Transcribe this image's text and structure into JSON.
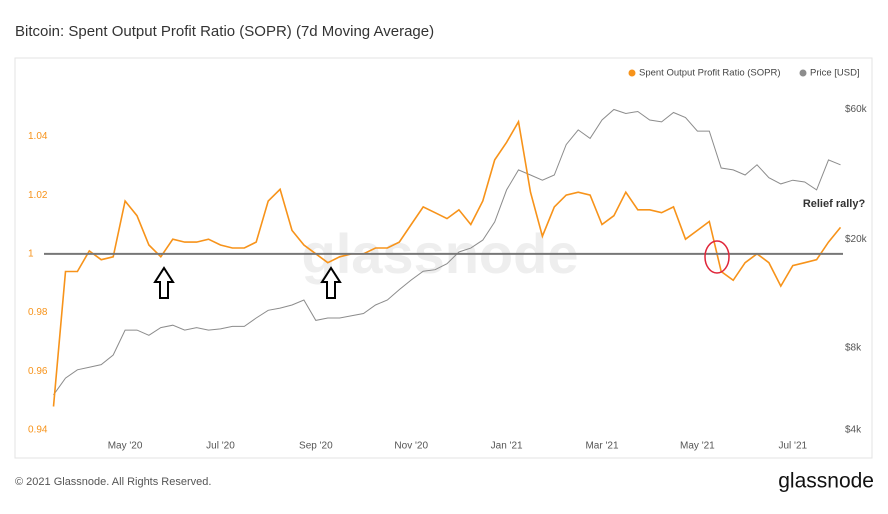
{
  "chart_data": {
    "type": "line",
    "title": "Bitcoin: Spent Output Profit Ratio (SOPR) (7d Moving Average)",
    "x": [
      2.5,
      2.75,
      3,
      3.25,
      3.5,
      3.75,
      4,
      4.25,
      4.5,
      4.75,
      5,
      5.25,
      5.5,
      5.75,
      6,
      6.25,
      6.5,
      6.75,
      7,
      7.25,
      7.5,
      7.75,
      8,
      8.25,
      8.5,
      8.75,
      9,
      9.25,
      9.5,
      9.75,
      10,
      10.25,
      10.5,
      10.75,
      11,
      11.25,
      11.5,
      11.75,
      12,
      12.25,
      12.5,
      12.75,
      13,
      13.25,
      13.5,
      13.75,
      14,
      14.25,
      14.5,
      14.75,
      15,
      15.25,
      15.5,
      15.75,
      16,
      16.25,
      16.5,
      16.75,
      17,
      17.25,
      17.5,
      17.75,
      18,
      18.25,
      18.5,
      18.75,
      19
    ],
    "xlim": [
      2.3,
      19.2
    ],
    "xticks": [
      {
        "value": 4,
        "label": "May '20"
      },
      {
        "value": 6,
        "label": "Jul '20"
      },
      {
        "value": 8,
        "label": "Sep '20"
      },
      {
        "value": 10,
        "label": "Nov '20"
      },
      {
        "value": 12,
        "label": "Jan '21"
      },
      {
        "value": 14,
        "label": "Mar '21"
      },
      {
        "value": 16,
        "label": "May '21"
      },
      {
        "value": 18,
        "label": "Jul '21"
      }
    ],
    "ylim": [
      0.94,
      1.0524
    ],
    "yticks": [
      0.94,
      0.96,
      0.98,
      1,
      1.02,
      1.04
    ],
    "y2lim": [
      4000,
      65000
    ],
    "y2scale": "log",
    "y2ticks": [
      {
        "value": 4000,
        "label": "$4k"
      },
      {
        "value": 8000,
        "label": "$8k"
      },
      {
        "value": 20000,
        "label": "$20k"
      },
      {
        "value": 60000,
        "label": "$60k"
      }
    ],
    "reference_line": 1,
    "series": [
      {
        "name": "Spent Output Profit Ratio (SOPR)",
        "color": "#f7931a",
        "values": [
          0.948,
          0.994,
          0.994,
          1.001,
          0.998,
          0.999,
          1.018,
          1.013,
          1.003,
          0.999,
          1.005,
          1.004,
          1.004,
          1.005,
          1.003,
          1.002,
          1.002,
          1.004,
          1.018,
          1.022,
          1.008,
          1.003,
          1.0,
          0.997,
          0.999,
          1.0,
          1.0,
          1.002,
          1.002,
          1.004,
          1.01,
          1.016,
          1.014,
          1.012,
          1.015,
          1.01,
          1.018,
          1.032,
          1.038,
          1.045,
          1.021,
          1.006,
          1.016,
          1.02,
          1.021,
          1.02,
          1.01,
          1.013,
          1.021,
          1.015,
          1.015,
          1.014,
          1.016,
          1.005,
          1.008,
          1.011,
          0.994,
          0.991,
          0.997,
          1.0,
          0.997,
          0.989,
          0.996,
          0.997,
          0.998,
          1.004,
          1.009
        ]
      },
      {
        "name": "Price [USD]",
        "color": "#8c8c8c",
        "axis": "y2",
        "values": [
          5380,
          6200,
          6650,
          6800,
          6950,
          7540,
          9300,
          9300,
          8900,
          9500,
          9700,
          9300,
          9500,
          9300,
          9400,
          9600,
          9600,
          10300,
          11000,
          11200,
          11500,
          12000,
          10100,
          10300,
          10300,
          10500,
          10700,
          11500,
          12000,
          13100,
          14200,
          15300,
          15500,
          16300,
          18000,
          18600,
          19900,
          23200,
          30400,
          36000,
          34500,
          33000,
          34500,
          44600,
          50500,
          47000,
          54900,
          60000,
          58000,
          59000,
          54900,
          54000,
          58500,
          56000,
          50000,
          50000,
          36600,
          36000,
          34500,
          37600,
          33700,
          32000,
          33000,
          32500,
          30400,
          39200,
          37600
        ]
      }
    ],
    "annotation": "Relief rally?",
    "watermark": "glassnode",
    "footer": "© 2021 Glassnode. All Rights Reserved.",
    "logo": "glassnode"
  }
}
